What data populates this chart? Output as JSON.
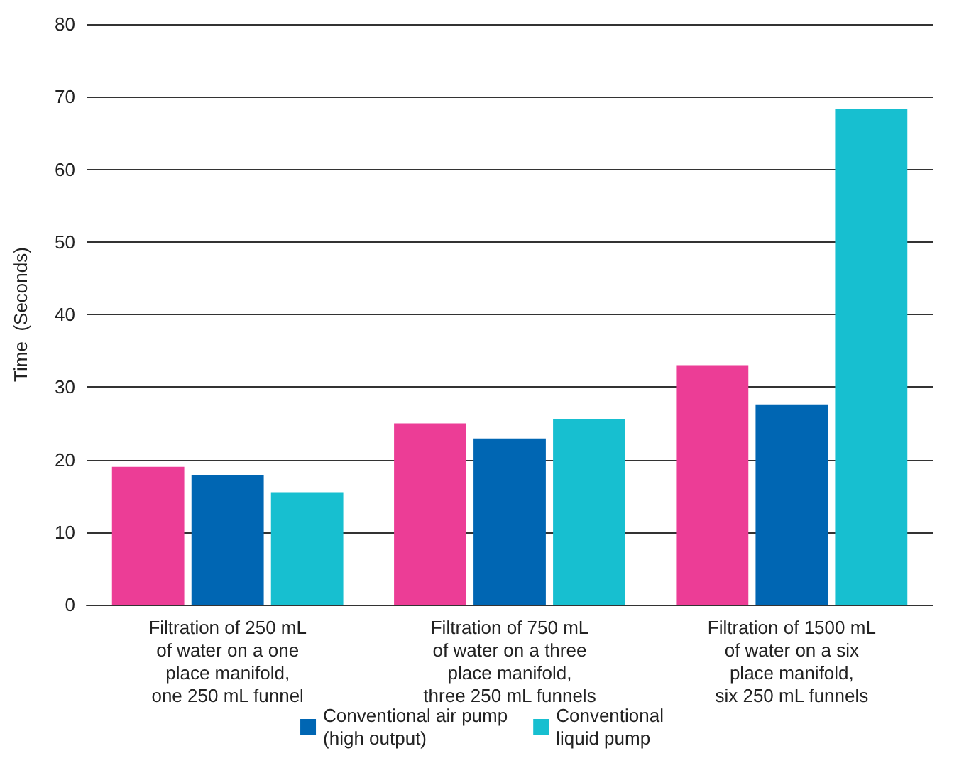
{
  "chart_data": {
    "type": "bar",
    "ylabel": "Time  (Seconds)",
    "categories": [
      "Filtration of 250 mL\nof water on a one\nplace manifold,\none 250 mL funnel",
      "Filtration of 750 mL\nof water on a three\nplace manifold,\nthree 250 mL funnels",
      "Filtration of 1500 mL\nof water on a six\nplace manifold,\nsix 250 mL funnels"
    ],
    "series": [
      {
        "color": "#ec3d96",
        "values": [
          19.0,
          25.0,
          33.0
        ]
      },
      {
        "name": "Conventional air pump\n(high output)",
        "color": "#0066b3",
        "values": [
          17.9,
          22.9,
          27.6
        ]
      },
      {
        "name": "Conventional\nliquid pump",
        "color": "#17bfd0",
        "values": [
          15.5,
          25.6,
          68.3
        ]
      }
    ],
    "ylim": [
      0,
      80
    ],
    "yticks": [
      0,
      10,
      20,
      30,
      40,
      50,
      60,
      70,
      80
    ],
    "grid": "y",
    "legend": "bottom"
  }
}
